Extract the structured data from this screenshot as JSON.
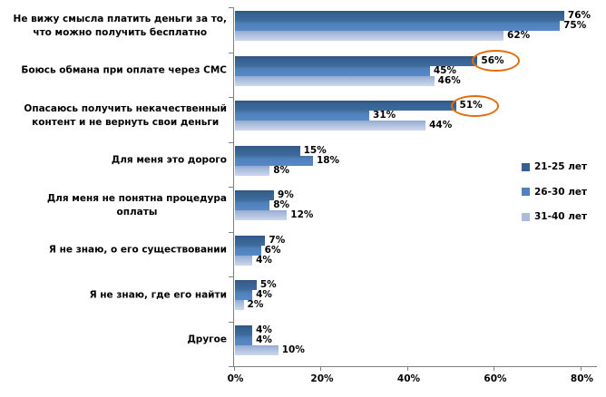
{
  "chart_data": {
    "type": "bar",
    "orientation": "horizontal",
    "title": "",
    "xlabel": "",
    "ylabel": "",
    "xlim": [
      0,
      80
    ],
    "x_ticks": [
      "0%",
      "20%",
      "40%",
      "60%",
      "80%"
    ],
    "grid": false,
    "legend_position": "right",
    "data_label_suffix": "%",
    "categories": [
      [
        "Не вижу смысла платить деньги за то,",
        "что можно получить бесплатно"
      ],
      [
        "Боюсь обмана при оплате через СМС"
      ],
      [
        "Опасаюсь получить некачественный",
        "контент и не вернуть свои деньги"
      ],
      [
        "Для меня это дорого"
      ],
      [
        "Для меня не понятна процедура",
        "оплаты"
      ],
      [
        "Я не знаю, о его существовании"
      ],
      [
        "Я не знаю, где его найти"
      ],
      [
        "Другое"
      ]
    ],
    "series": [
      {
        "name": "21-25 лет",
        "color": "#366092",
        "values": [
          76,
          56,
          51,
          15,
          9,
          7,
          5,
          4
        ]
      },
      {
        "name": "26-30 лет",
        "color": "#4F81BD",
        "values": [
          75,
          45,
          31,
          18,
          8,
          6,
          4,
          4
        ]
      },
      {
        "name": "31-40 лет",
        "color": "#A9BCDC",
        "values": [
          62,
          46,
          44,
          8,
          12,
          4,
          2,
          10
        ]
      }
    ],
    "annotations": [
      {
        "shape": "ellipse",
        "color": "#E36C09",
        "series_index": 0,
        "category_index": 1,
        "value_label": "56%"
      },
      {
        "shape": "ellipse",
        "color": "#E36C09",
        "series_index": 0,
        "category_index": 2,
        "value_label": "51%"
      }
    ]
  }
}
